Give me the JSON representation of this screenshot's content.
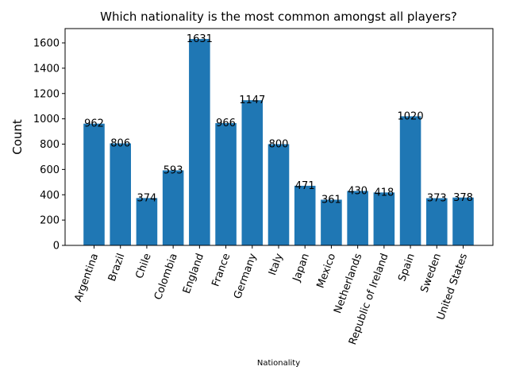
{
  "chart_data": {
    "type": "bar",
    "title": "Which nationality is the most common amongst all players?",
    "xlabel": "Nationality",
    "ylabel": "Count",
    "ylim": [
      0,
      1713
    ],
    "yticks": [
      0,
      200,
      400,
      600,
      800,
      1000,
      1200,
      1400,
      1600
    ],
    "grid": false,
    "color": "#1f77b4",
    "categories": [
      "Argentina",
      "Brazil",
      "Chile",
      "Colombia",
      "England",
      "France",
      "Germany",
      "Italy",
      "Japan",
      "Mexico",
      "Netherlands",
      "Republic of Ireland",
      "Spain",
      "Sweden",
      "United States"
    ],
    "values": [
      962,
      806,
      374,
      593,
      1631,
      966,
      1147,
      800,
      471,
      361,
      430,
      418,
      1020,
      373,
      378
    ]
  }
}
